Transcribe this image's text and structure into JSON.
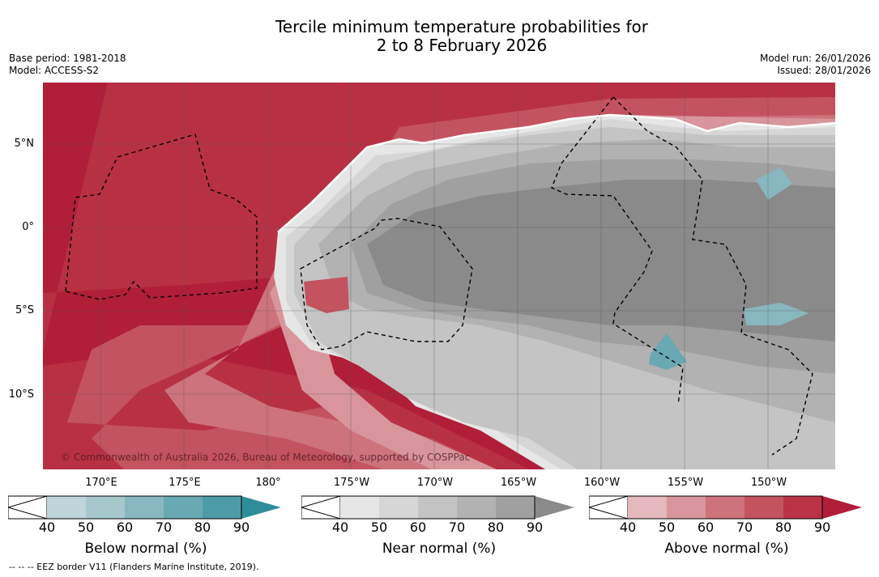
{
  "title_line1": "Tercile minimum temperature probabilities for",
  "title_line2": "2 to 8 February 2026",
  "base_period": "Base period: 1981-2018",
  "model": "Model: ACCESS-S2",
  "model_run": "Model run: 26/01/2026",
  "issued": "Issued: 28/01/2026",
  "copyright": "© Commonwealth of Australia 2026, Bureau of Meteorology, supported by COSPPac",
  "eez_note": "--  --  -- EEZ border V11 (Flanders Marine Institute, 2019).",
  "lat_labels": [
    "5°N",
    "0°",
    "5°S",
    "10°S"
  ],
  "lon_labels": [
    "170°E",
    "175°E",
    "180°",
    "175°W",
    "170°W",
    "165°W",
    "160°W",
    "155°W",
    "150°W"
  ],
  "colorbars": [
    {
      "title": "Below normal (%)",
      "ticks": [
        "40",
        "50",
        "60",
        "70",
        "80",
        "90"
      ],
      "colors": [
        "#bfd5da",
        "#a6c8cd",
        "#88b7bf",
        "#69a9b3",
        "#4c9ba7",
        "#2f8d99"
      ]
    },
    {
      "title": "Near normal (%)",
      "ticks": [
        "40",
        "50",
        "60",
        "70",
        "80",
        "90"
      ],
      "colors": [
        "#e6e6e6",
        "#d6d6d6",
        "#c4c4c4",
        "#b2b2b2",
        "#a0a0a0",
        "#8a8a8a"
      ]
    },
    {
      "title": "Above normal (%)",
      "ticks": [
        "40",
        "50",
        "60",
        "70",
        "80",
        "90"
      ],
      "colors": [
        "#e4b8bd",
        "#d8959c",
        "#cd737c",
        "#c3535f",
        "#b93345",
        "#b01e38"
      ]
    }
  ]
}
